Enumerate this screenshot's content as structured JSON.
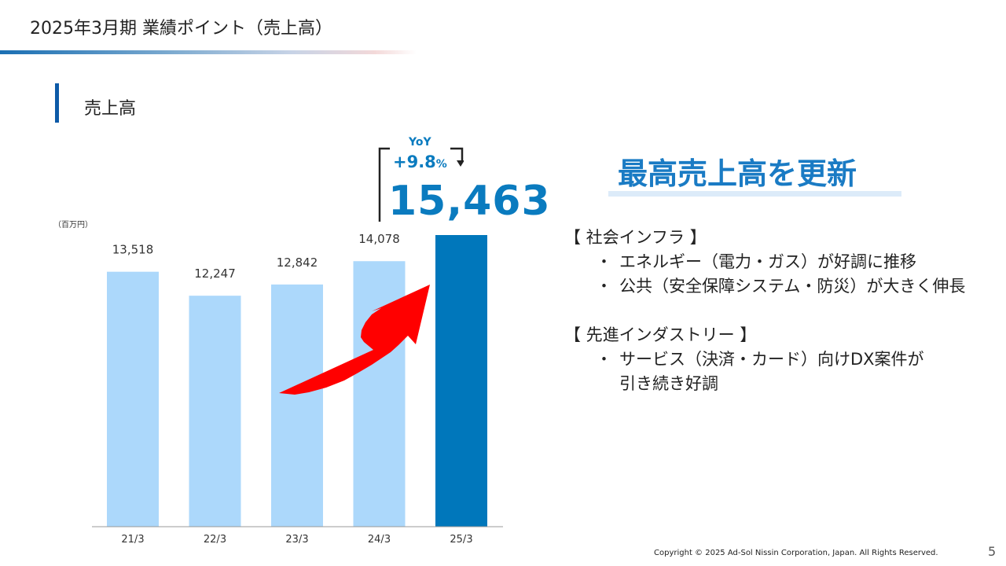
{
  "header": {
    "title": "2025年3月期 業績ポイント（売上高）"
  },
  "section": {
    "title": "売上高"
  },
  "chart_data": {
    "type": "bar",
    "title": "",
    "unit_label": "（百万円）",
    "categories": [
      "21/3",
      "22/3",
      "23/3",
      "24/3",
      "25/3"
    ],
    "values": [
      13518,
      12247,
      12842,
      14078,
      15463
    ],
    "value_labels": [
      "13,518",
      "12,247",
      "12,842",
      "14,078",
      ""
    ],
    "highlight_index": 4,
    "ylim": [
      0,
      15463
    ],
    "colors": {
      "bar": "#acd8fb",
      "highlight": "#0077bb",
      "axis": "#999999",
      "arrow": "#ff0000"
    },
    "annotation": {
      "yoy_label": "YoY",
      "yoy_value": "+9.8",
      "yoy_unit": "%",
      "highlight_value": "15,463"
    }
  },
  "message": {
    "headline": "最高売上高を更新",
    "groups": [
      {
        "category": "【 社会インフラ 】",
        "items": [
          {
            "bullet": "・",
            "text": "エネルギー（電力・ガス）が好調に推移"
          },
          {
            "bullet": "・",
            "text": "公共（安全保障システム・防災）が大きく伸長"
          }
        ]
      },
      {
        "category": "【 先進インダストリー 】",
        "items": [
          {
            "bullet": "・",
            "text": "サービス（決済・カード）向けDX案件が"
          }
        ],
        "continuation": "引き続き好調"
      }
    ]
  },
  "footer": {
    "copyright": "Copyright © 2025 Ad-Sol Nissin Corporation, Japan. All Rights Reserved.",
    "page": "5"
  }
}
